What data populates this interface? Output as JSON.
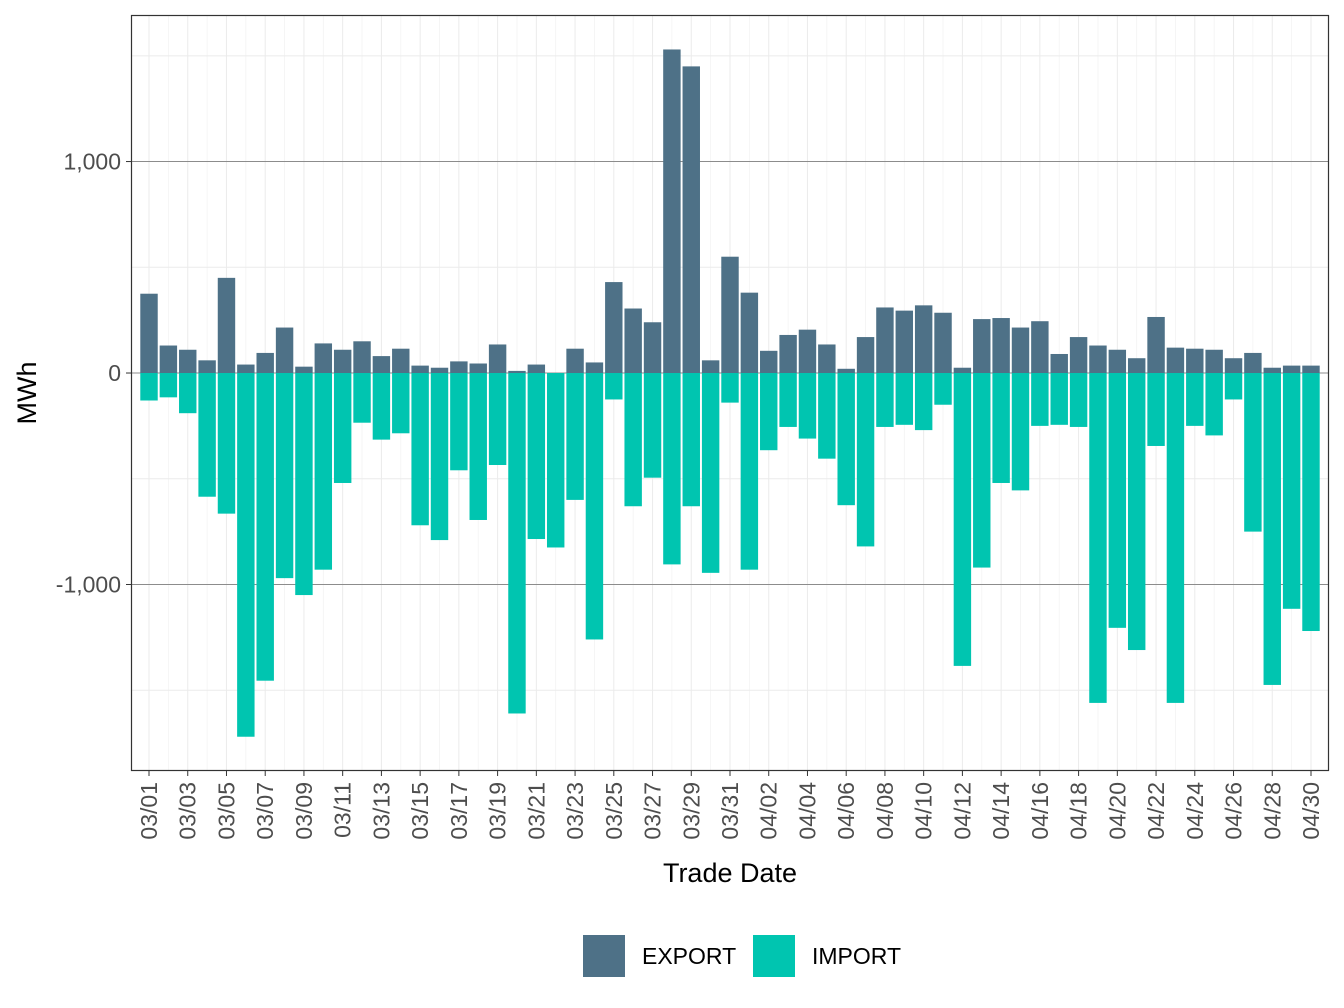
{
  "chart_data": {
    "type": "bar",
    "xlabel": "Trade Date",
    "ylabel": "MWh",
    "x_month_day": [
      [
        3,
        1
      ],
      [
        3,
        2
      ],
      [
        3,
        3
      ],
      [
        3,
        4
      ],
      [
        3,
        5
      ],
      [
        3,
        6
      ],
      [
        3,
        7
      ],
      [
        3,
        8
      ],
      [
        3,
        9
      ],
      [
        3,
        10
      ],
      [
        3,
        11
      ],
      [
        3,
        12
      ],
      [
        3,
        13
      ],
      [
        3,
        14
      ],
      [
        3,
        15
      ],
      [
        3,
        16
      ],
      [
        3,
        17
      ],
      [
        3,
        18
      ],
      [
        3,
        19
      ],
      [
        3,
        20
      ],
      [
        3,
        21
      ],
      [
        3,
        22
      ],
      [
        3,
        23
      ],
      [
        3,
        24
      ],
      [
        3,
        25
      ],
      [
        3,
        26
      ],
      [
        3,
        27
      ],
      [
        3,
        28
      ],
      [
        3,
        29
      ],
      [
        3,
        30
      ],
      [
        3,
        31
      ],
      [
        4,
        1
      ],
      [
        4,
        2
      ],
      [
        4,
        3
      ],
      [
        4,
        4
      ],
      [
        4,
        5
      ],
      [
        4,
        6
      ],
      [
        4,
        7
      ],
      [
        4,
        8
      ],
      [
        4,
        9
      ],
      [
        4,
        10
      ],
      [
        4,
        11
      ],
      [
        4,
        12
      ],
      [
        4,
        13
      ],
      [
        4,
        14
      ],
      [
        4,
        15
      ],
      [
        4,
        16
      ],
      [
        4,
        17
      ],
      [
        4,
        18
      ],
      [
        4,
        19
      ],
      [
        4,
        20
      ],
      [
        4,
        21
      ],
      [
        4,
        22
      ],
      [
        4,
        23
      ],
      [
        4,
        24
      ],
      [
        4,
        25
      ],
      [
        4,
        26
      ],
      [
        4,
        27
      ],
      [
        4,
        28
      ],
      [
        4,
        29
      ],
      [
        4,
        30
      ]
    ],
    "x_tick_labels": [
      "03/01",
      "03/03",
      "03/05",
      "03/07",
      "03/09",
      "03/11",
      "03/13",
      "03/15",
      "03/17",
      "03/19",
      "03/21",
      "03/23",
      "03/25",
      "03/27",
      "03/29",
      "03/31",
      "04/02",
      "04/04",
      "04/06",
      "04/08",
      "04/10",
      "04/12",
      "04/14",
      "04/16",
      "04/18",
      "04/20",
      "04/22",
      "04/24",
      "04/26",
      "04/28",
      "04/30"
    ],
    "y_ticks": [
      {
        "value": 1000,
        "label": "1,000"
      },
      {
        "value": 0,
        "label": "0"
      },
      {
        "value": -1000,
        "label": "-1,000"
      }
    ],
    "y_minor_breaks": [
      -1500,
      -500,
      500,
      1500
    ],
    "ylim": [
      -1882,
      1693
    ],
    "grid": true,
    "legend_position": "bottom",
    "series": [
      {
        "name": "EXPORT",
        "color": "#4E7187",
        "values": [
          375,
          130,
          110,
          60,
          450,
          40,
          95,
          215,
          30,
          140,
          110,
          150,
          80,
          115,
          35,
          25,
          55,
          45,
          135,
          10,
          40,
          0,
          115,
          50,
          430,
          305,
          240,
          1530,
          1450,
          60,
          550,
          380,
          105,
          180,
          205,
          135,
          20,
          170,
          310,
          295,
          320,
          285,
          25,
          255,
          260,
          215,
          245,
          90,
          170,
          130,
          110,
          70,
          265,
          120,
          115,
          110,
          70,
          95,
          25,
          35,
          35
        ]
      },
      {
        "name": "IMPORT",
        "color": "#00C5B0",
        "values": [
          -130,
          -115,
          -190,
          -585,
          -665,
          -1720,
          -1455,
          -970,
          -1050,
          -930,
          -520,
          -235,
          -315,
          -285,
          -720,
          -790,
          -460,
          -695,
          -435,
          -1610,
          -785,
          -825,
          -600,
          -1260,
          -125,
          -630,
          -495,
          -905,
          -630,
          -945,
          -140,
          -930,
          -365,
          -255,
          -310,
          -405,
          -625,
          -820,
          -255,
          -245,
          -270,
          -150,
          -1385,
          -920,
          -520,
          -555,
          -250,
          -245,
          -255,
          -1560,
          -1205,
          -1310,
          -345,
          -1560,
          -250,
          -295,
          -125,
          -750,
          -1475,
          -1115,
          -1220
        ]
      }
    ]
  }
}
